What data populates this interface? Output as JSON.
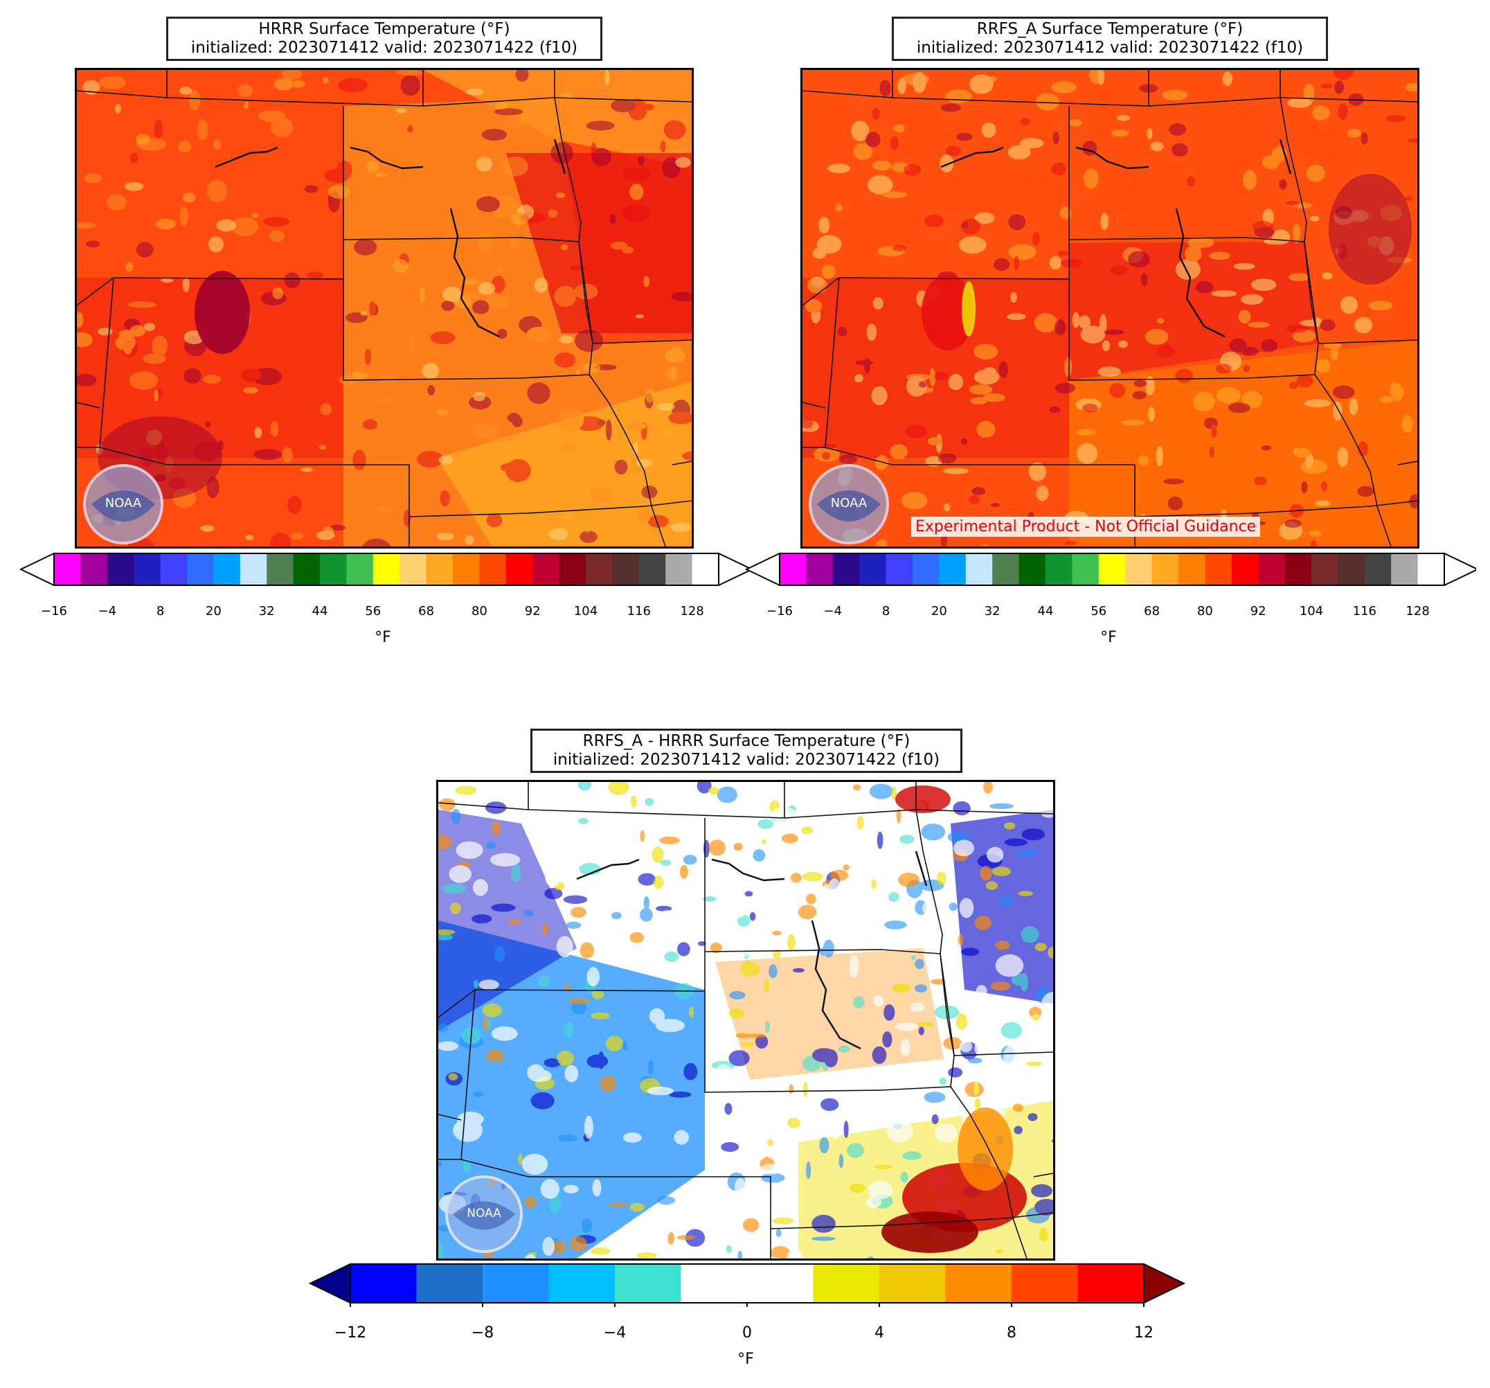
{
  "panels": {
    "hrrr": {
      "title_line1": "HRRR Surface Temperature (°F)",
      "title_line2": "initialized: 2023071412 valid: 2023071422 (f10)"
    },
    "rrfs": {
      "title_line1": "RRFS_A Surface Temperature (°F)",
      "title_line2": "initialized: 2023071412 valid: 2023071422 (f10)",
      "watermark": "Experimental Product - Not Official Guidance"
    },
    "diff": {
      "title_line1": "RRFS_A - HRRR Surface Temperature (°F)",
      "title_line2": "initialized: 2023071412 valid: 2023071422 (f10)"
    }
  },
  "logo": {
    "name": "NOAA",
    "text": "NOAA"
  },
  "temp_colorbar": {
    "unit": "°F",
    "ticks": [
      "−16",
      "−4",
      "8",
      "20",
      "32",
      "44",
      "56",
      "68",
      "80",
      "92",
      "104",
      "116",
      "128"
    ],
    "colors": [
      "#ff00ff",
      "#a0009b",
      "#2a0a8a",
      "#2020c0",
      "#4040ff",
      "#2f6cff",
      "#00a0ff",
      "#c8e6ff",
      "#508050",
      "#006400",
      "#109430",
      "#40c050",
      "#ffff00",
      "#ffd070",
      "#ffa824",
      "#ff8000",
      "#ff4800",
      "#ff0000",
      "#c00030",
      "#8c0014",
      "#7a2a2a",
      "#552e2e",
      "#444444",
      "#aaaaaa",
      "#ffffff"
    ],
    "extend_low_color": "#ffffff",
    "extend_high_color": "#ffffff"
  },
  "diff_colorbar": {
    "unit": "°F",
    "ticks": [
      "−12",
      "−8",
      "−4",
      "0",
      "4",
      "8",
      "12"
    ],
    "colors": [
      "#0000ff",
      "#1e6ec8",
      "#1e90ff",
      "#00bfff",
      "#40e0d0",
      "#ffffff",
      "#ffffff",
      "#e8e800",
      "#eec800",
      "#ff8c00",
      "#ff4500",
      "#ff0000"
    ],
    "extend_low_color": "#00008b",
    "extend_high_color": "#8b0000"
  },
  "map_colors": {
    "hrrr_base": "#ff4a10",
    "hrrr_warm": "#ff9020",
    "hrrr_hot": "#e81010",
    "hrrr_dark": "#a00030",
    "hrrr_light": "#ffd070",
    "rrfs_base": "#ff5010",
    "rrfs_hot": "#e81010",
    "rrfs_light": "#ffd070",
    "rrfs_dark": "#a00030",
    "diff_white": "#ffffff",
    "diff_blue": "#1e90ff",
    "diff_dark_blue": "#0000c8",
    "diff_cyan": "#40e0d0",
    "diff_yellow": "#f0e000",
    "diff_orange": "#ff8c00",
    "diff_red": "#d00000"
  }
}
